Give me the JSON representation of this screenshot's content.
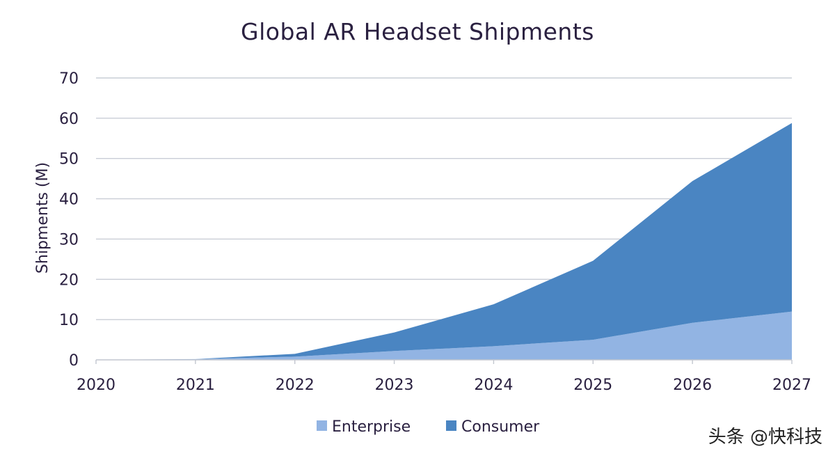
{
  "chart_data": {
    "type": "area",
    "stacked": true,
    "title": "Global AR Headset Shipments",
    "ylabel": "Shipments (M)",
    "xlabel": "",
    "x": [
      2020,
      2021,
      2022,
      2023,
      2024,
      2025,
      2026,
      2027
    ],
    "ylim": [
      0,
      70
    ],
    "yticks": [
      0,
      10,
      20,
      30,
      40,
      50,
      60,
      70
    ],
    "grid": true,
    "legend": "bottom",
    "series": [
      {
        "name": "Enterprise",
        "color": "#92b4e3",
        "values": [
          0,
          0.2,
          0.8,
          2.2,
          3.4,
          5.0,
          9.2,
          12.0
        ]
      },
      {
        "name": "Consumer",
        "color": "#4a85c2",
        "values": [
          0,
          0,
          0.7,
          4.6,
          10.4,
          19.6,
          35.2,
          46.8
        ]
      }
    ]
  },
  "watermark": "头条 @快科技"
}
